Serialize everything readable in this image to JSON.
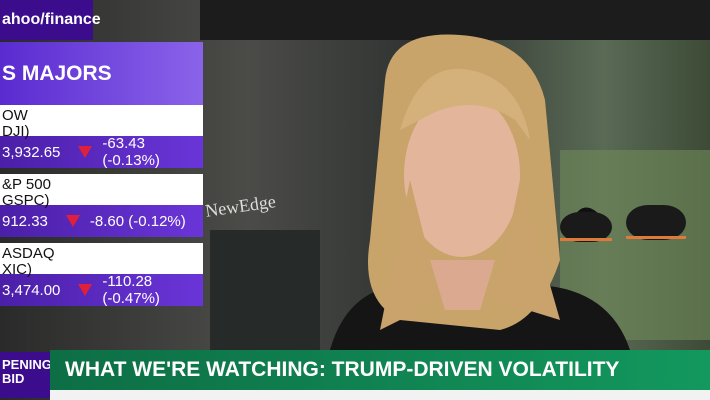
{
  "header": {
    "logo": "ahoo/finance"
  },
  "majors": {
    "title": "S MAJORS",
    "rows": [
      {
        "name": "OW",
        "symbol": "DJI)",
        "price": "3,932.65",
        "change": "-63.43 (-0.13%)"
      },
      {
        "name": "&P 500",
        "symbol": "GSPC)",
        "price": "912.33",
        "change": "-8.60 (-0.12%)"
      },
      {
        "name": "ASDAQ",
        "symbol": "XIC)",
        "price": "3,474.00",
        "change": "-110.28 (-0.47%)"
      }
    ]
  },
  "scene": {
    "sign": "NewEdge"
  },
  "lower_third": {
    "show_line1": "PENING",
    "show_line2": "BID",
    "headline": "WHAT WE'RE WATCHING: TRUMP-DRIVEN VOLATILITY"
  }
}
